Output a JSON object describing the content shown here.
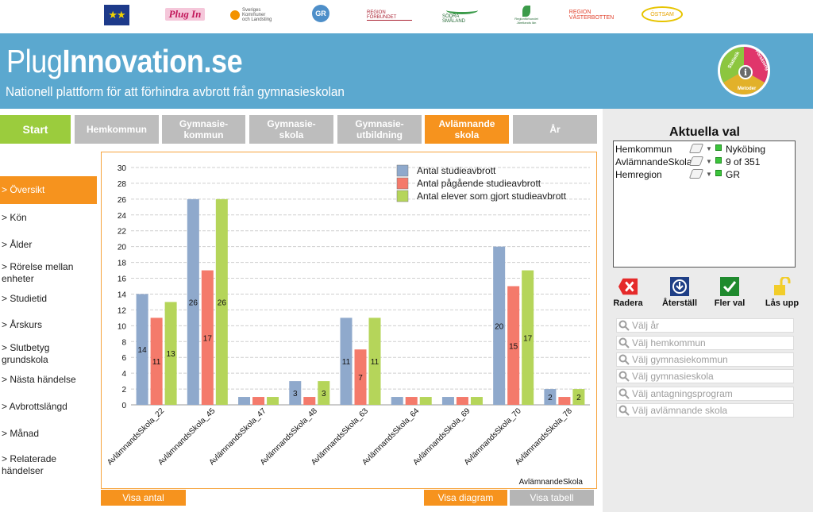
{
  "logos": {
    "eu": "★★",
    "plug_in": "Plug In",
    "skl": "Sveriges Kommuner och Landsting",
    "gr": "GR",
    "region_fk": "REGION FÖRBUNDET",
    "sodra_smaland": "SÖDRA SMÅLAND",
    "jamtland": "Regionförbundet Jämtlands län",
    "vasterbotten": "REGION VÄSTERBOTTEN",
    "ostsam": "ÖSTSAM"
  },
  "banner": {
    "title_light": "Plug",
    "title_bold": "Innovation.se",
    "subtitle": "Nationell plattform för att förhindra avbrott från gymnasieskolan",
    "wheel_labels": [
      "Statistik",
      "Forskning",
      "Metoder"
    ],
    "wheel_center": "i",
    "colors": {
      "banner": "#5ba8cf",
      "accent": "#f6931e",
      "start": "#9bcc3d",
      "inactive": "#bdbdbd"
    }
  },
  "tabs": [
    {
      "label": "Start"
    },
    {
      "label": "Hemkommun"
    },
    {
      "label": "Gymnasie-\nkommun"
    },
    {
      "label": "Gymnasie-\nskola"
    },
    {
      "label": "Gymnasie-\nutbildning"
    },
    {
      "label": "Avlämnande\nskola"
    },
    {
      "label": "År"
    }
  ],
  "nav": [
    {
      "label": "> Översikt"
    },
    {
      "label": "> Kön"
    },
    {
      "label": "> Ålder"
    },
    {
      "label": "> Rörelse mellan enheter"
    },
    {
      "label": "> Studietid"
    },
    {
      "label": "> Årskurs"
    },
    {
      "label": "> Slutbetyg grundskola"
    },
    {
      "label": "> Nästa händelse"
    },
    {
      "label": "> Avbrottslängd"
    },
    {
      "label": "> Månad"
    },
    {
      "label": "> Relaterade händelser"
    }
  ],
  "chart_data": {
    "type": "bar",
    "title": "",
    "xlabel": "AvlämnandeSkola",
    "ylabel": "",
    "ylim": [
      0,
      30
    ],
    "yticks": [
      0,
      2,
      4,
      6,
      8,
      10,
      12,
      14,
      16,
      18,
      20,
      22,
      24,
      26,
      28,
      30
    ],
    "grid": true,
    "legend_position": "top-right",
    "categories": [
      "AvlämnandsSkola_22",
      "AvlämnandsSkola_45",
      "AvlämnandsSkola_47",
      "AvlämnandsSkola_48",
      "AvlämnandsSkola_63",
      "AvlämnandsSkola_64",
      "AvlämnandsSkola_69",
      "AvlämnandsSkola_70",
      "AvlämnandsSkola_78"
    ],
    "series": [
      {
        "name": "Antal studieavbrott",
        "color": "#8fa9cc",
        "values": [
          14,
          26,
          1,
          3,
          11,
          1,
          1,
          20,
          2
        ],
        "labels": [
          "14",
          "26",
          "",
          "3",
          "11",
          "",
          "",
          "20",
          "2"
        ]
      },
      {
        "name": "Antal pågående studieavbrott",
        "color": "#f47a6b",
        "values": [
          11,
          17,
          1,
          1,
          7,
          1,
          1,
          15,
          1
        ],
        "labels": [
          "11",
          "17",
          "",
          "",
          "7",
          "",
          "",
          "15",
          ""
        ]
      },
      {
        "name": "Antal elever som gjort studieavbrott",
        "color": "#b5d55a",
        "values": [
          13,
          26,
          1,
          3,
          11,
          1,
          1,
          17,
          2
        ],
        "labels": [
          "13",
          "26",
          "",
          "3",
          "11",
          "",
          "",
          "17",
          "2"
        ]
      }
    ]
  },
  "chart_buttons": {
    "visa_antal": "Visa antal",
    "visa_diagram": "Visa diagram",
    "visa_tabell": "Visa tabell"
  },
  "current_selections": {
    "title": "Aktuella val",
    "rows": [
      {
        "field": "Hemkommun",
        "value": "Nyköbing"
      },
      {
        "field": "AvlämnandeSkola",
        "value": "9 of 351"
      },
      {
        "field": "Hemregion",
        "value": "GR"
      }
    ]
  },
  "actions": {
    "radera": "Radera",
    "aterstall": "Återställ",
    "fler_val": "Fler val",
    "las_upp": "Lås upp"
  },
  "search_fields": [
    {
      "placeholder": "Välj år"
    },
    {
      "placeholder": "Välj hemkommun"
    },
    {
      "placeholder": "Välj gymnasiekommun"
    },
    {
      "placeholder": "Välj gymnasieskola"
    },
    {
      "placeholder": "Välj antagningsprogram"
    },
    {
      "placeholder": "Välj avlämnande skola"
    }
  ]
}
